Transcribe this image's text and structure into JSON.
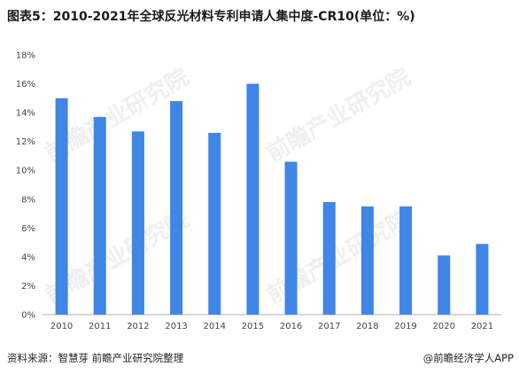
{
  "title": "图表5：2010-2021年全球反光材料专利申请人集中度-CR10(单位：%)",
  "source": "资料来源：智慧芽 前瞻产业研究院整理",
  "credit": "@前瞻经济学人APP",
  "watermark": "前瞻产业研究院",
  "colors": {
    "bar": "#3f86e6",
    "axis": "#b0b0b0"
  },
  "chart_data": {
    "type": "bar",
    "title": "图表5：2010-2021年全球反光材料专利申请人集中度-CR10(单位：%)",
    "categories": [
      "2010",
      "2011",
      "2012",
      "2013",
      "2014",
      "2015",
      "2016",
      "2017",
      "2018",
      "2019",
      "2020",
      "2021"
    ],
    "values": [
      15.0,
      13.7,
      12.7,
      14.8,
      12.6,
      16.0,
      10.6,
      7.8,
      7.5,
      7.5,
      4.1,
      4.9
    ],
    "yticks": [
      "0%",
      "2%",
      "4%",
      "6%",
      "8%",
      "10%",
      "12%",
      "14%",
      "16%",
      "18%"
    ],
    "ylim": [
      0,
      18
    ],
    "xlabel": "",
    "ylabel": "",
    "grid": false,
    "legend": "none"
  }
}
